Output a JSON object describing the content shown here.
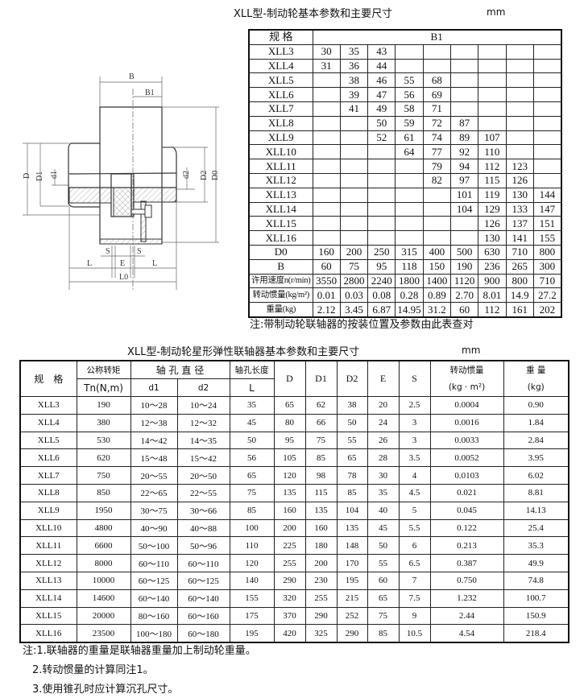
{
  "top_title": "XLL型-制动轮基本参数和主要尺寸",
  "top_unit": "mm",
  "drawing": {
    "labels": {
      "B": "B",
      "B1": "B1",
      "D": "D",
      "D1": "D1",
      "d1": "d1",
      "d2": "d2",
      "D2": "D2",
      "D0": "D0",
      "S_left": "S",
      "S_right": "S",
      "E": "E",
      "L_left": "L",
      "L_right": "L",
      "L0": "L0"
    }
  },
  "brake_table": {
    "header_label": "规 格",
    "header_b1": "B1",
    "rows": [
      {
        "model": "XLL3",
        "b1": [
          "30",
          "35",
          "43",
          "",
          "",
          "",
          "",
          "",
          ""
        ]
      },
      {
        "model": "XLL4",
        "b1": [
          "31",
          "36",
          "44",
          "",
          "",
          "",
          "",
          "",
          ""
        ]
      },
      {
        "model": "XLL5",
        "b1": [
          "",
          "38",
          "46",
          "55",
          "68",
          "",
          "",
          "",
          ""
        ]
      },
      {
        "model": "XLL6",
        "b1": [
          "",
          "39",
          "47",
          "56",
          "69",
          "",
          "",
          "",
          ""
        ]
      },
      {
        "model": "XLL7",
        "b1": [
          "",
          "41",
          "49",
          "58",
          "71",
          "",
          "",
          "",
          ""
        ]
      },
      {
        "model": "XLL8",
        "b1": [
          "",
          "",
          "50",
          "59",
          "72",
          "87",
          "",
          "",
          ""
        ]
      },
      {
        "model": "XLL9",
        "b1": [
          "",
          "",
          "52",
          "61",
          "74",
          "89",
          "107",
          "",
          ""
        ]
      },
      {
        "model": "XLL10",
        "b1": [
          "",
          "",
          "",
          "64",
          "77",
          "92",
          "110",
          "",
          ""
        ]
      },
      {
        "model": "XLL11",
        "b1": [
          "",
          "",
          "",
          "",
          "79",
          "94",
          "112",
          "123",
          ""
        ]
      },
      {
        "model": "XLL12",
        "b1": [
          "",
          "",
          "",
          "",
          "82",
          "97",
          "115",
          "126",
          ""
        ]
      },
      {
        "model": "XLL13",
        "b1": [
          "",
          "",
          "",
          "",
          "",
          "101",
          "119",
          "130",
          "144"
        ]
      },
      {
        "model": "XLL14",
        "b1": [
          "",
          "",
          "",
          "",
          "",
          "104",
          "129",
          "133",
          "147"
        ]
      },
      {
        "model": "XLL15",
        "b1": [
          "",
          "",
          "",
          "",
          "",
          "",
          "126",
          "137",
          "151"
        ]
      },
      {
        "model": "XLL16",
        "b1": [
          "",
          "",
          "",
          "",
          "",
          "",
          "130",
          "141",
          "155"
        ]
      }
    ],
    "param_rows": [
      {
        "label": "D0",
        "values": [
          "160",
          "200",
          "250",
          "315",
          "400",
          "500",
          "630",
          "710",
          "800"
        ]
      },
      {
        "label": "B",
        "values": [
          "60",
          "75",
          "95",
          "118",
          "150",
          "190",
          "236",
          "265",
          "300"
        ]
      },
      {
        "label": "许用速度n(r/min)",
        "values": [
          "3550",
          "2800",
          "2240",
          "1800",
          "1400",
          "1120",
          "900",
          "800",
          "710"
        ]
      },
      {
        "label": "转动惯量(kg/m²)",
        "values": [
          "0.01",
          "0.03",
          "0.08",
          "0.28",
          "0.89",
          "2.70",
          "8.01",
          "14.9",
          "27.2"
        ]
      },
      {
        "label": "重量(kg)",
        "values": [
          "2.12",
          "3.45",
          "6.87",
          "14.95",
          "31.2",
          "60",
          "112",
          "161",
          "202"
        ]
      }
    ],
    "note": "注:带制动轮联轴器的按装位置及参数由此表查对"
  },
  "bottom_title": "XLL型-制动轮星形弹性联轴器基本参数和主要尺寸",
  "bottom_unit": "mm",
  "coupling_table": {
    "headers": {
      "model": "规　格",
      "torque_top": "公称转矩",
      "torque_bottom": "Tn(N,m)",
      "bore_dia": "轴 孔 直 径",
      "d1": "d1",
      "d2": "d2",
      "bore_len_top": "轴孔长度",
      "bore_len_bottom": "L",
      "D": "D",
      "D1": "D1",
      "D2": "D2",
      "E": "E",
      "S": "S",
      "inertia_top": "转动惯量",
      "inertia_bottom": "(kg · m²)",
      "weight_top": "重 量",
      "weight_bottom": "(kg)"
    },
    "rows": [
      [
        "XLL3",
        "190",
        "10～28",
        "10～24",
        "35",
        "65",
        "62",
        "38",
        "20",
        "2.5",
        "0.0004",
        "0.90"
      ],
      [
        "XLL4",
        "380",
        "12～38",
        "12～32",
        "45",
        "80",
        "66",
        "50",
        "24",
        "3",
        "0.0016",
        "1.84"
      ],
      [
        "XLL5",
        "530",
        "14～42",
        "14～35",
        "50",
        "95",
        "75",
        "55",
        "26",
        "3",
        "0.0033",
        "2.84"
      ],
      [
        "XLL6",
        "620",
        "15～48",
        "15～42",
        "56",
        "105",
        "85",
        "65",
        "28",
        "3.5",
        "0.0052",
        "3.95"
      ],
      [
        "XLL7",
        "750",
        "20～55",
        "20～50",
        "65",
        "120",
        "98",
        "78",
        "30",
        "4",
        "0.0103",
        "6.02"
      ],
      [
        "XLL8",
        "850",
        "22～65",
        "22～55",
        "75",
        "135",
        "115",
        "85",
        "35",
        "4.5",
        "0.021",
        "8.81"
      ],
      [
        "XLL9",
        "1950",
        "30～75",
        "30～66",
        "85",
        "160",
        "135",
        "104",
        "40",
        "5",
        "0.045",
        "14.13"
      ],
      [
        "XLL10",
        "4800",
        "40～90",
        "40～88",
        "100",
        "200",
        "160",
        "135",
        "45",
        "5.5",
        "0.122",
        "25.4"
      ],
      [
        "XLL11",
        "6600",
        "50～100",
        "50～96",
        "110",
        "225",
        "180",
        "148",
        "50",
        "6",
        "0.213",
        "35.3"
      ],
      [
        "XLL12",
        "8000",
        "60～110",
        "60～110",
        "120",
        "255",
        "200",
        "170",
        "55",
        "6.5",
        "0.387",
        "49.9"
      ],
      [
        "XLL13",
        "10000",
        "60～125",
        "60～125",
        "140",
        "290",
        "230",
        "195",
        "60",
        "7",
        "0.750",
        "74.8"
      ],
      [
        "XLL14",
        "14600",
        "60～140",
        "60～140",
        "155",
        "320",
        "255",
        "215",
        "65",
        "7.5",
        "1.232",
        "100.7"
      ],
      [
        "XLL15",
        "20000",
        "80～160",
        "60～160",
        "175",
        "370",
        "290",
        "252",
        "75",
        "9",
        "2.44",
        "150.9"
      ],
      [
        "XLL16",
        "23500",
        "100～180",
        "60～180",
        "195",
        "420",
        "325",
        "290",
        "85",
        "10.5",
        "4.54",
        "218.4"
      ]
    ]
  },
  "notes": [
    "注:1.联轴器的重量是联轴器重量加上制动轮重量。",
    "2.转动惯量的计算同注1。",
    "3.使用锥孔时应计算沉孔尺寸。"
  ]
}
